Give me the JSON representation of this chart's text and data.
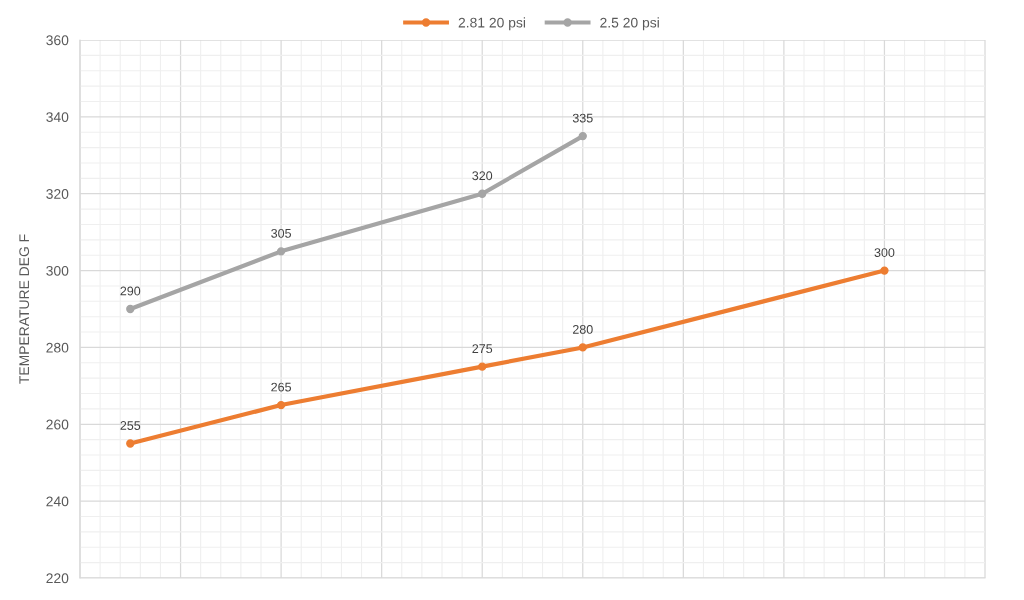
{
  "chart_data": {
    "type": "line",
    "ylabel": "TEMPERATURE DEG F",
    "categories": [
      null,
      null,
      null,
      null,
      null,
      null,
      null,
      null,
      null,
      null,
      null,
      null,
      null,
      null,
      null,
      null,
      null,
      null,
      null
    ],
    "series": [
      {
        "name": "2.81 20 psi",
        "color": "#ed7d31",
        "values": [
          null,
          255,
          null,
          null,
          265,
          null,
          null,
          null,
          275,
          null,
          280,
          null,
          null,
          null,
          null,
          null,
          300,
          null,
          null
        ]
      },
      {
        "name": "2.5 20 psi",
        "color": "#a5a5a5",
        "values": [
          null,
          290,
          null,
          null,
          305,
          null,
          null,
          null,
          320,
          null,
          335,
          null,
          null,
          null,
          null,
          null,
          null,
          null,
          null
        ]
      }
    ],
    "ylim": [
      220,
      360
    ],
    "yticks": [
      220,
      240,
      260,
      280,
      300,
      320,
      340,
      360
    ],
    "grid": true,
    "legend": "top",
    "marker": "circle",
    "line_style": "solid",
    "data_labels": true,
    "tick_labels": "y"
  }
}
